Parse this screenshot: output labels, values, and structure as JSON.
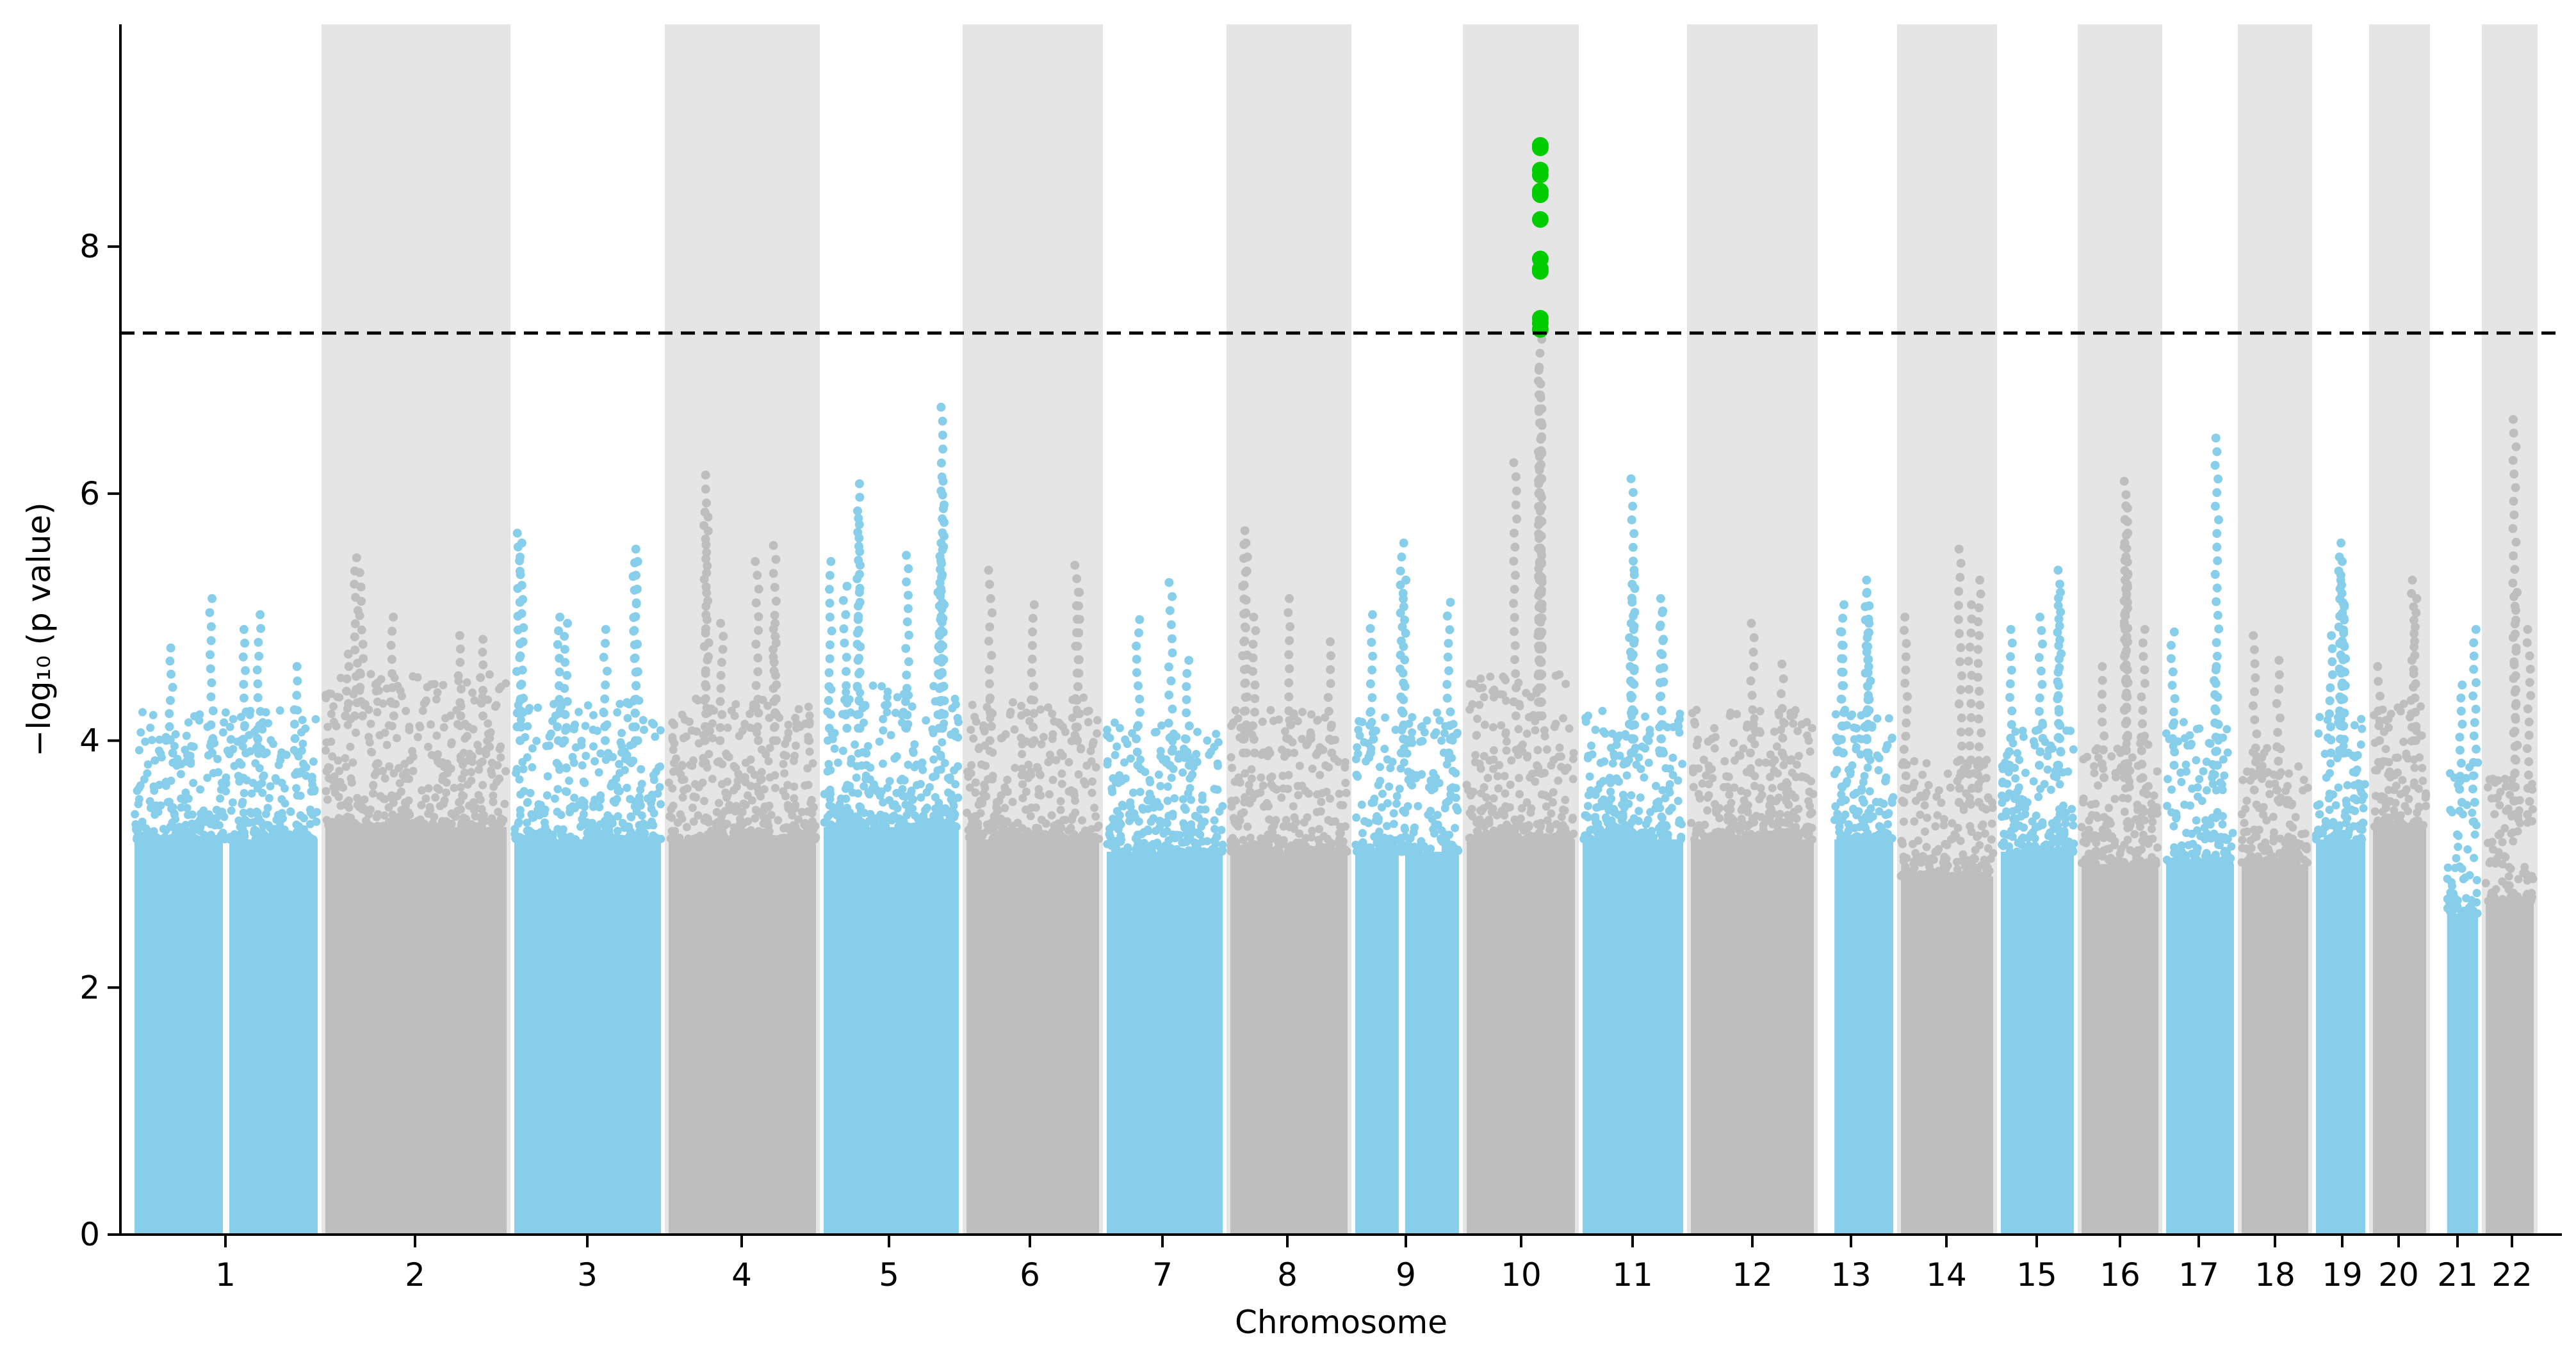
{
  "chart_data": {
    "type": "scatter",
    "subtype": "manhattan",
    "title": "",
    "xlabel": "Chromosome",
    "ylabel": "−log₁₀ (p value)",
    "ylim": [
      0,
      9.8
    ],
    "yticks": [
      0,
      2,
      4,
      6,
      8
    ],
    "significance_threshold": 7.3,
    "grid": false,
    "colors": {
      "odd_chromosome_points": "#87ceeb",
      "even_chromosome_points": "#bebebe",
      "even_chromosome_band": "#e5e5e5",
      "significant_points": "#00cc00",
      "threshold_line": "#000000"
    },
    "chromosomes": [
      {
        "label": "1",
        "floor": 3.2,
        "dense_top": 3.9,
        "peaks": [
          {
            "pos": 0.2,
            "value": 4.75
          },
          {
            "pos": 0.42,
            "value": 5.15
          },
          {
            "pos": 0.6,
            "value": 4.9
          },
          {
            "pos": 0.68,
            "value": 5.02
          },
          {
            "pos": 0.88,
            "value": 4.6
          }
        ],
        "gap": 0.5
      },
      {
        "label": "2",
        "floor": 3.3,
        "dense_top": 4.2,
        "peaks": [
          {
            "pos": 0.12,
            "value": 4.7
          },
          {
            "pos": 0.17,
            "value": 5.48
          },
          {
            "pos": 0.2,
            "value": 5.36
          },
          {
            "pos": 0.37,
            "value": 5.0
          },
          {
            "pos": 0.74,
            "value": 4.85
          },
          {
            "pos": 0.86,
            "value": 4.82
          }
        ]
      },
      {
        "label": "3",
        "floor": 3.2,
        "dense_top": 4.0,
        "peaks": [
          {
            "pos": 0.03,
            "value": 5.68
          },
          {
            "pos": 0.05,
            "value": 5.6
          },
          {
            "pos": 0.3,
            "value": 5.0
          },
          {
            "pos": 0.35,
            "value": 4.95
          },
          {
            "pos": 0.62,
            "value": 4.9
          },
          {
            "pos": 0.82,
            "value": 5.55
          },
          {
            "pos": 0.83,
            "value": 5.45
          }
        ]
      },
      {
        "label": "4",
        "floor": 3.2,
        "dense_top": 4.0,
        "peaks": [
          {
            "pos": 0.26,
            "value": 6.15
          },
          {
            "pos": 0.25,
            "value": 5.85
          },
          {
            "pos": 0.36,
            "value": 4.95
          },
          {
            "pos": 0.6,
            "value": 5.45
          },
          {
            "pos": 0.72,
            "value": 5.58
          },
          {
            "pos": 0.72,
            "value": 4.95
          }
        ]
      },
      {
        "label": "5",
        "floor": 3.3,
        "dense_top": 4.1,
        "peaks": [
          {
            "pos": 0.05,
            "value": 5.45
          },
          {
            "pos": 0.16,
            "value": 5.25
          },
          {
            "pos": 0.26,
            "value": 6.08
          },
          {
            "pos": 0.26,
            "value": 5.8
          },
          {
            "pos": 0.62,
            "value": 5.5
          },
          {
            "pos": 0.88,
            "value": 6.7
          },
          {
            "pos": 0.88,
            "value": 6.1
          },
          {
            "pos": 0.87,
            "value": 5.6
          },
          {
            "pos": 0.86,
            "value": 5.2
          }
        ]
      },
      {
        "label": "6",
        "floor": 3.2,
        "dense_top": 4.0,
        "peaks": [
          {
            "pos": 0.18,
            "value": 5.38
          },
          {
            "pos": 0.5,
            "value": 5.1
          },
          {
            "pos": 0.83,
            "value": 5.42
          },
          {
            "pos": 0.84,
            "value": 5.2
          }
        ]
      },
      {
        "label": "7",
        "floor": 3.1,
        "dense_top": 3.8,
        "peaks": [
          {
            "pos": 0.27,
            "value": 4.98
          },
          {
            "pos": 0.55,
            "value": 5.28
          },
          {
            "pos": 0.7,
            "value": 4.65
          }
        ]
      },
      {
        "label": "8",
        "floor": 3.1,
        "dense_top": 3.9,
        "peaks": [
          {
            "pos": 0.12,
            "value": 5.7
          },
          {
            "pos": 0.13,
            "value": 5.6
          },
          {
            "pos": 0.2,
            "value": 5.0
          },
          {
            "pos": 0.5,
            "value": 5.15
          },
          {
            "pos": 0.85,
            "value": 4.8
          }
        ]
      },
      {
        "label": "9",
        "floor": 3.1,
        "dense_top": 3.9,
        "peaks": [
          {
            "pos": 0.16,
            "value": 5.02
          },
          {
            "pos": 0.45,
            "value": 5.6
          },
          {
            "pos": 0.47,
            "value": 5.3
          },
          {
            "pos": 0.9,
            "value": 5.12
          }
        ],
        "gap": 0.45
      },
      {
        "label": "10",
        "floor": 3.2,
        "dense_top": 4.2,
        "peaks": [
          {
            "pos": 0.45,
            "value": 6.25
          },
          {
            "pos": 0.68,
            "value": 7.25
          },
          {
            "pos": 0.68,
            "value": 7.0
          },
          {
            "pos": 0.68,
            "value": 6.8
          },
          {
            "pos": 0.68,
            "value": 6.45
          },
          {
            "pos": 0.68,
            "value": 6.3
          },
          {
            "pos": 0.68,
            "value": 5.9
          },
          {
            "pos": 0.68,
            "value": 5.5
          },
          {
            "pos": 0.68,
            "value": 5.3
          },
          {
            "pos": 0.67,
            "value": 4.85
          }
        ],
        "significant": {
          "pos": 0.68,
          "values": [
            8.82,
            8.8,
            8.62,
            8.58,
            8.45,
            8.42,
            8.22,
            7.9,
            7.82,
            7.8,
            7.42,
            7.38,
            7.33
          ]
        }
      },
      {
        "label": "11",
        "floor": 3.2,
        "dense_top": 3.9,
        "peaks": [
          {
            "pos": 0.5,
            "value": 6.12
          },
          {
            "pos": 0.5,
            "value": 5.38
          },
          {
            "pos": 0.48,
            "value": 4.95
          },
          {
            "pos": 0.78,
            "value": 5.15
          },
          {
            "pos": 0.79,
            "value": 5.05
          }
        ]
      },
      {
        "label": "12",
        "floor": 3.2,
        "dense_top": 3.9,
        "peaks": [
          {
            "pos": 0.5,
            "value": 4.95
          },
          {
            "pos": 0.75,
            "value": 4.62
          }
        ]
      },
      {
        "label": "13",
        "floor": 3.2,
        "dense_top": 3.9,
        "peaks": [
          {
            "pos": 0.13,
            "value": 5.1
          },
          {
            "pos": 0.14,
            "value": 4.88
          },
          {
            "pos": 0.55,
            "value": 5.3
          },
          {
            "pos": 0.56,
            "value": 5.2
          },
          {
            "pos": 0.58,
            "value": 4.95
          }
        ],
        "leading_gap": 0.18
      },
      {
        "label": "14",
        "floor": 2.9,
        "dense_top": 3.5,
        "peaks": [
          {
            "pos": 0.05,
            "value": 5.0
          },
          {
            "pos": 0.64,
            "value": 5.55
          },
          {
            "pos": 0.75,
            "value": 5.1
          },
          {
            "pos": 0.85,
            "value": 5.3
          }
        ]
      },
      {
        "label": "15",
        "floor": 3.1,
        "dense_top": 3.8,
        "peaks": [
          {
            "pos": 0.13,
            "value": 4.9
          },
          {
            "pos": 0.55,
            "value": 5.0
          },
          {
            "pos": 0.8,
            "value": 5.38
          },
          {
            "pos": 0.8,
            "value": 5.2
          }
        ]
      },
      {
        "label": "16",
        "floor": 3.0,
        "dense_top": 3.7,
        "peaks": [
          {
            "pos": 0.28,
            "value": 4.6
          },
          {
            "pos": 0.58,
            "value": 6.1
          },
          {
            "pos": 0.58,
            "value": 5.9
          },
          {
            "pos": 0.58,
            "value": 5.6
          },
          {
            "pos": 0.58,
            "value": 5.3
          },
          {
            "pos": 0.8,
            "value": 4.9
          }
        ]
      },
      {
        "label": "17",
        "floor": 3.0,
        "dense_top": 3.8,
        "peaks": [
          {
            "pos": 0.1,
            "value": 4.88
          },
          {
            "pos": 0.75,
            "value": 6.45
          },
          {
            "pos": 0.72,
            "value": 4.6
          }
        ]
      },
      {
        "label": "18",
        "floor": 3.0,
        "dense_top": 3.6,
        "peaks": [
          {
            "pos": 0.2,
            "value": 4.85
          },
          {
            "pos": 0.55,
            "value": 4.65
          }
        ]
      },
      {
        "label": "19",
        "floor": 3.2,
        "dense_top": 3.9,
        "peaks": [
          {
            "pos": 0.5,
            "value": 5.6
          },
          {
            "pos": 0.52,
            "value": 5.45
          },
          {
            "pos": 0.54,
            "value": 5.3
          },
          {
            "pos": 0.56,
            "value": 5.1
          },
          {
            "pos": 0.3,
            "value": 4.85
          }
        ]
      },
      {
        "label": "20",
        "floor": 3.3,
        "dense_top": 4.0,
        "peaks": [
          {
            "pos": 0.12,
            "value": 4.6
          },
          {
            "pos": 0.75,
            "value": 5.3
          },
          {
            "pos": 0.8,
            "value": 5.15
          }
        ]
      },
      {
        "label": "21",
        "floor": 2.6,
        "dense_top": 3.5,
        "peaks": [
          {
            "pos": 0.45,
            "value": 4.45
          },
          {
            "pos": 0.88,
            "value": 4.9
          }
        ],
        "leading_gap": 0.3
      },
      {
        "label": "22",
        "floor": 2.7,
        "dense_top": 3.4,
        "peaks": [
          {
            "pos": 0.6,
            "value": 6.6
          },
          {
            "pos": 0.62,
            "value": 5.2
          },
          {
            "pos": 0.9,
            "value": 4.9
          }
        ]
      }
    ]
  }
}
